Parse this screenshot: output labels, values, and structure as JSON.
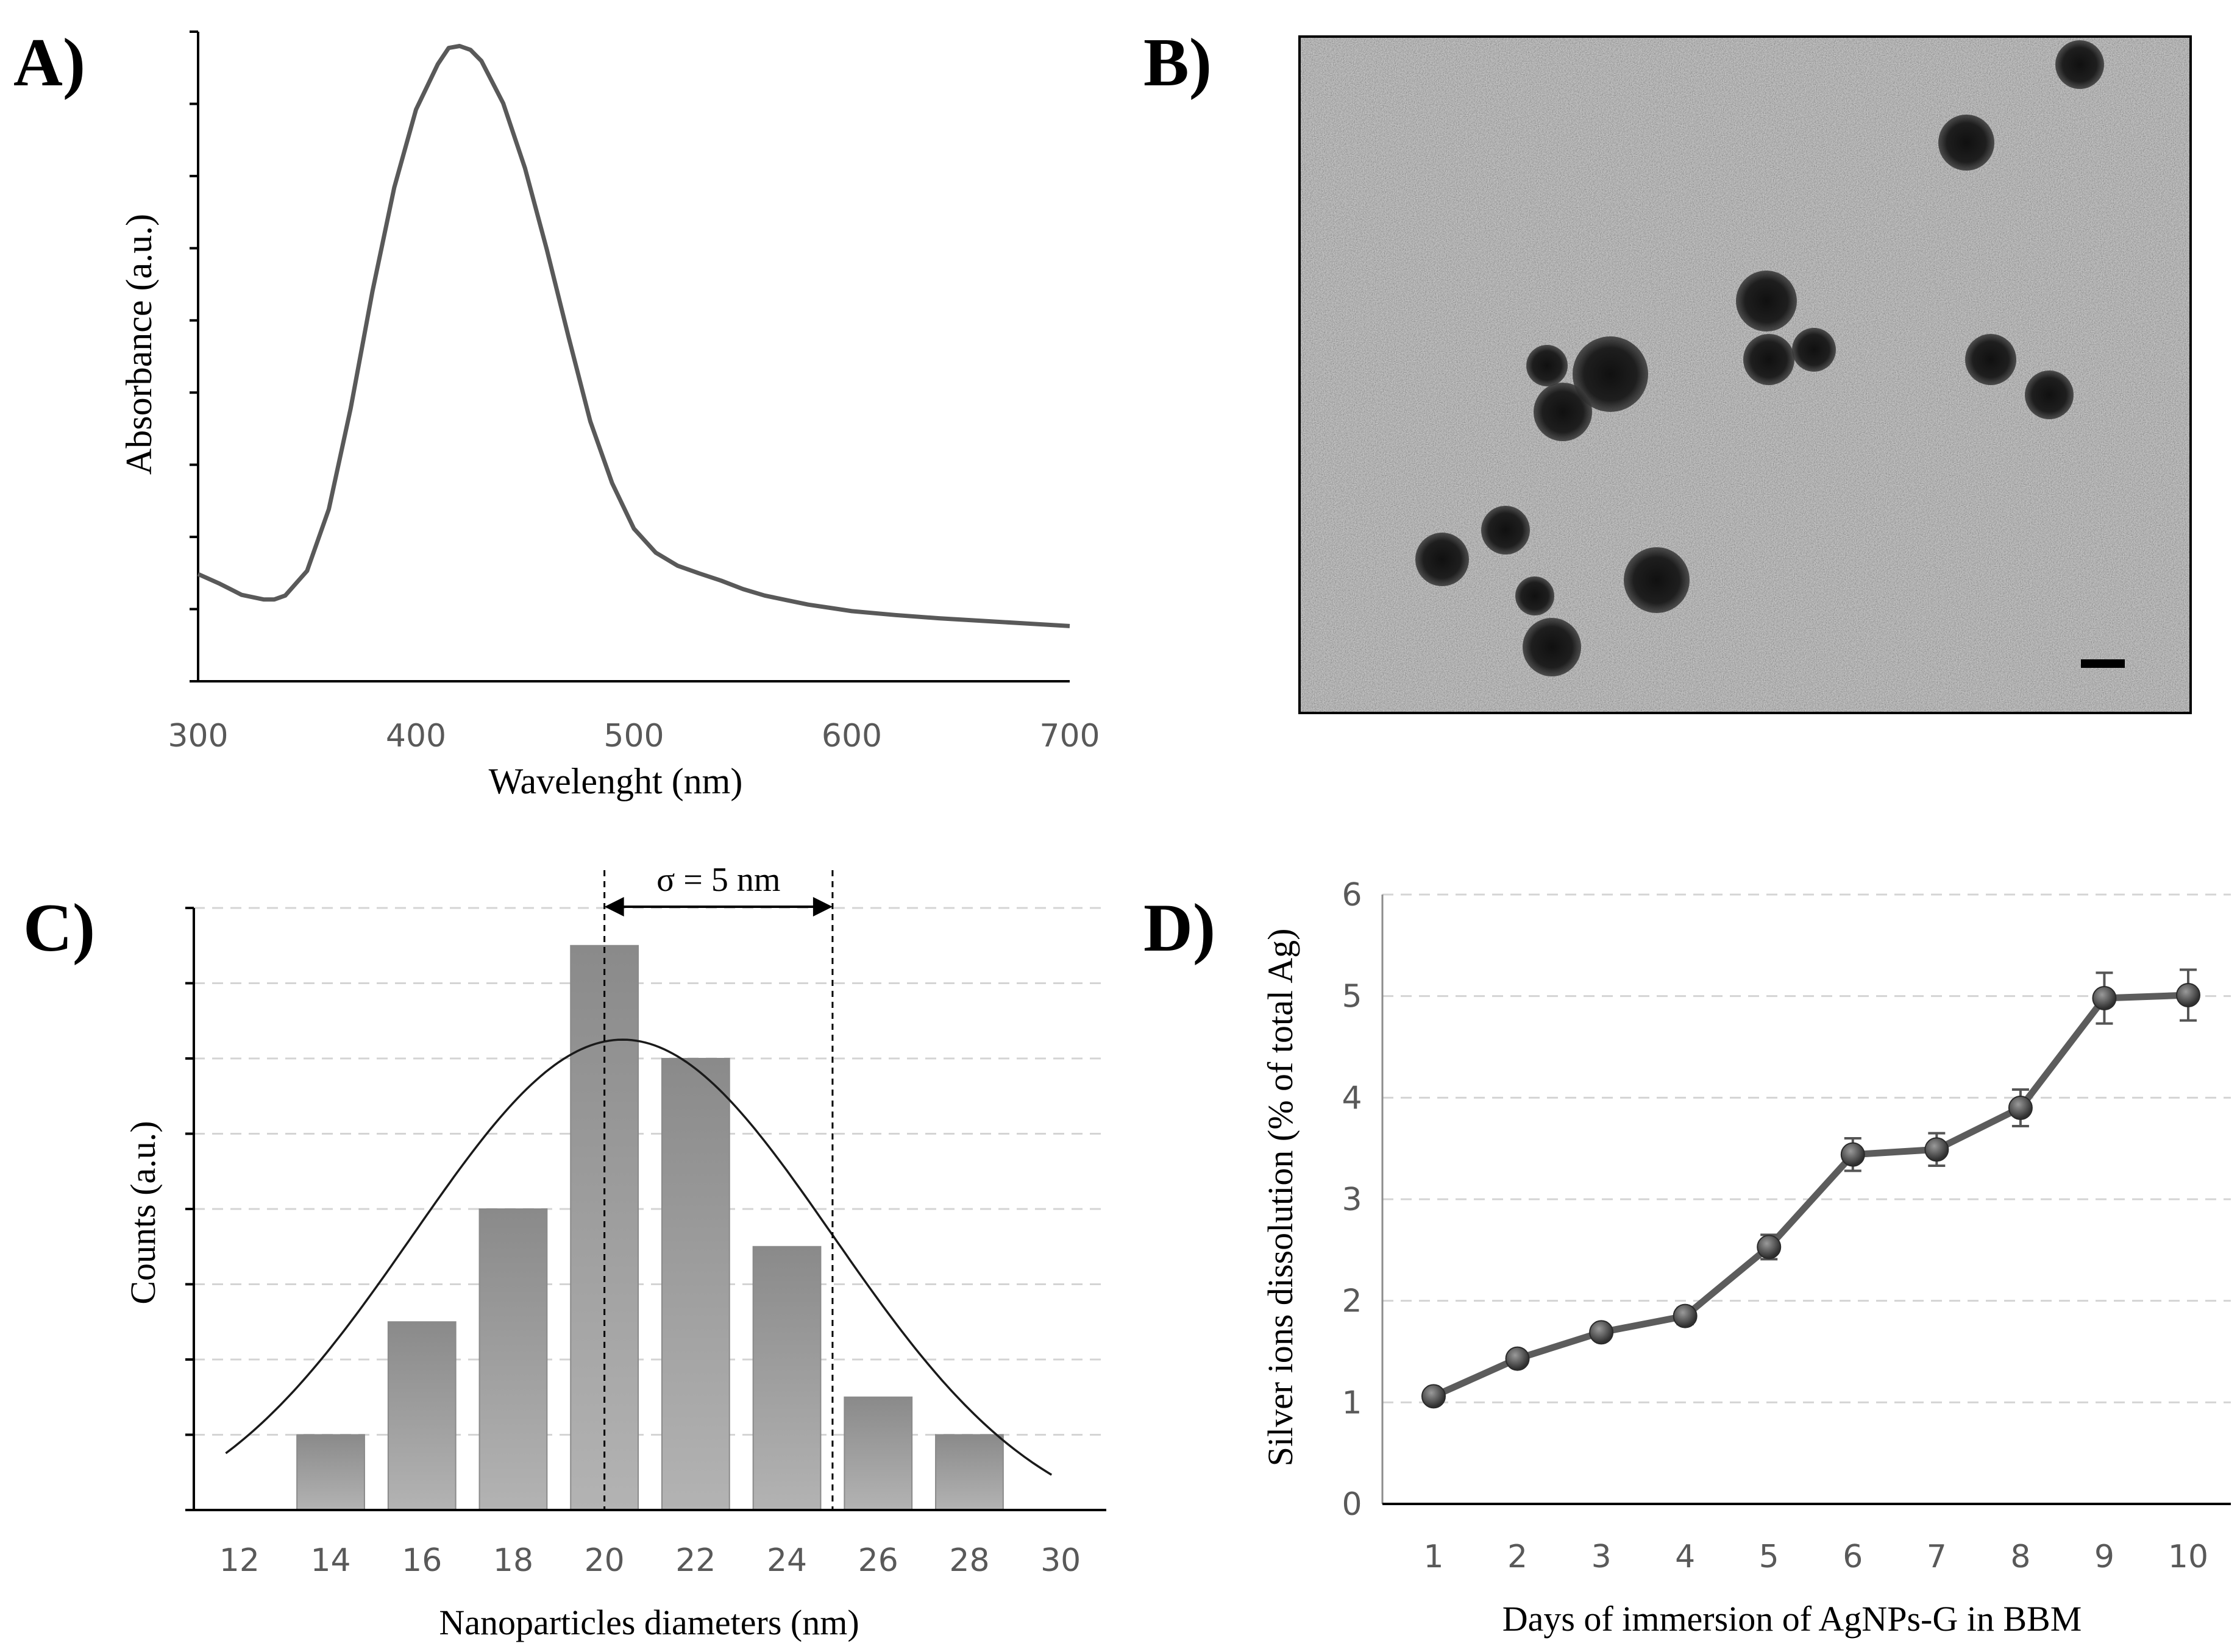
{
  "chart_data": [
    {
      "panel": "A)",
      "type": "line",
      "title": "",
      "xlabel": "Wavelenght (nm)",
      "ylabel": "Absorbance (a.u.)",
      "xlim": [
        300,
        700
      ],
      "ylim": [
        0,
        1
      ],
      "xticks": [
        "300",
        "400",
        "500",
        "600",
        "700"
      ],
      "y_ticks_count": 9,
      "color": "#595959",
      "series": [
        {
          "name": "Absorbance",
          "x": [
            300,
            310,
            320,
            330,
            335,
            340,
            350,
            360,
            370,
            380,
            390,
            400,
            410,
            415,
            420,
            425,
            430,
            440,
            450,
            460,
            470,
            480,
            490,
            500,
            510,
            520,
            530,
            540,
            550,
            560,
            570,
            580,
            590,
            600,
            620,
            640,
            660,
            680,
            700
          ],
          "y": [
            0.165,
            0.15,
            0.133,
            0.126,
            0.126,
            0.132,
            0.17,
            0.265,
            0.42,
            0.6,
            0.76,
            0.88,
            0.95,
            0.975,
            0.978,
            0.972,
            0.955,
            0.89,
            0.79,
            0.665,
            0.53,
            0.4,
            0.305,
            0.235,
            0.198,
            0.178,
            0.166,
            0.155,
            0.142,
            0.132,
            0.125,
            0.118,
            0.113,
            0.108,
            0.102,
            0.097,
            0.093,
            0.089,
            0.085
          ]
        }
      ]
    },
    {
      "panel": "B)",
      "type": "image",
      "description_label": "TEM image"
    },
    {
      "panel": "C)",
      "type": "bar",
      "title": "",
      "xlabel": "Nanoparticles diameters (nm)",
      "ylabel": "Counts (a.u.)",
      "xlim": [
        11,
        31
      ],
      "ylim": [
        0,
        8
      ],
      "xticks": [
        "12",
        "14",
        "16",
        "18",
        "20",
        "22",
        "24",
        "26",
        "28",
        "30"
      ],
      "categories": [
        "14",
        "16",
        "18",
        "20",
        "22",
        "24",
        "26",
        "28"
      ],
      "bar_centers": [
        14,
        16,
        18,
        20,
        22,
        24,
        26,
        28
      ],
      "values": [
        1,
        2.5,
        4,
        7.5,
        6,
        3.5,
        1.5,
        1
      ],
      "fit": {
        "type": "gaussian",
        "mean": 20.4,
        "sigma": 4.6,
        "peak": 6.25,
        "offset": -0.35
      },
      "annotation": {
        "text": "σ = 5 nm",
        "from": 20,
        "to": 25
      },
      "color": "#9a9a9a"
    },
    {
      "panel": "D)",
      "type": "line",
      "title": "",
      "xlabel": "Days of immersion of AgNPs-G in BBM",
      "ylabel": "Silver ions dissolution (% of total Ag)",
      "ylim": [
        0,
        6
      ],
      "yticks": [
        "0",
        "1",
        "2",
        "3",
        "4",
        "5",
        "6"
      ],
      "categories": [
        "1",
        "2",
        "3",
        "4",
        "5",
        "6",
        "7",
        "8",
        "9",
        "10"
      ],
      "series": [
        {
          "name": "Silver ions dissolution",
          "values": [
            1.06,
            1.43,
            1.69,
            1.85,
            2.53,
            3.44,
            3.49,
            3.9,
            4.98,
            5.01
          ],
          "errors": [
            0.05,
            0.06,
            0.07,
            0.08,
            0.12,
            0.16,
            0.16,
            0.18,
            0.25,
            0.25
          ]
        }
      ],
      "color": "#595959"
    }
  ],
  "labels": {
    "a": "A)",
    "b": "B)",
    "c": "C)",
    "d": "D)"
  }
}
